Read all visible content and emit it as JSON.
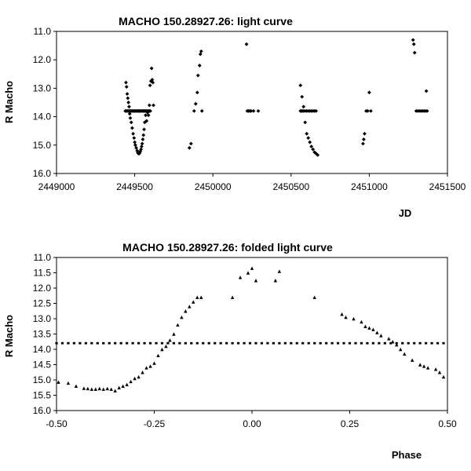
{
  "chart_data": [
    {
      "type": "scatter",
      "title": "MACHO 150.28927.26: light curve",
      "xlabel": "JD",
      "ylabel": "R Macho",
      "xlim": [
        2449000,
        2451500
      ],
      "ylim": [
        11.0,
        16.0
      ],
      "y_inverted": true,
      "x_ticks": [
        "2449000",
        "2449500",
        "2450000",
        "2450500",
        "2451000",
        "2451500"
      ],
      "y_ticks": [
        "11.0",
        "12.0",
        "13.0",
        "14.0",
        "15.0",
        "16.0"
      ],
      "marker": "diamond",
      "grid": false,
      "series": [
        {
          "x": [
            2449440,
            2449446,
            2449452,
            2449458,
            2449464,
            2449470,
            2449476,
            2449482,
            2449488,
            2449494,
            2449500,
            2449506,
            2449512,
            2449518,
            2449524,
            2449530,
            2449536,
            2449542,
            2449548,
            2449554,
            2449560,
            2449566,
            2449572,
            2449578,
            2449584,
            2449590,
            2449596,
            2449600,
            2449444,
            2449448,
            2449452,
            2449456,
            2449460,
            2449464,
            2449468,
            2449472,
            2449478,
            2449484,
            2449490,
            2449496,
            2449500,
            2449504,
            2449510,
            2449516,
            2449520,
            2449524,
            2449528,
            2449532,
            2449536,
            2449540,
            2449544,
            2449548,
            2449552,
            2449556,
            2449560,
            2449564,
            2449570,
            2449576,
            2449582,
            2449588,
            2449594,
            2449598,
            2449604,
            2449608,
            2449612,
            2449616,
            2449620,
            2449850,
            2449860,
            2449880,
            2449890,
            2449900,
            2449905,
            2449915,
            2449920,
            2449925,
            2449930,
            2450215,
            2450220,
            2450228,
            2450236,
            2450244,
            2450260,
            2450290,
            2450560,
            2450566,
            2450572,
            2450580,
            2450590,
            2450600,
            2450610,
            2450620,
            2450630,
            2450640,
            2450650,
            2450660,
            2450560,
            2450570,
            2450580,
            2450590,
            2450600,
            2450610,
            2450620,
            2450630,
            2450640,
            2450650,
            2450660,
            2450670,
            2450960,
            2450965,
            2450970,
            2450980,
            2450990,
            2451000,
            2451010,
            2451280,
            2451285,
            2451290,
            2451300,
            2451310,
            2451320,
            2451330,
            2451340,
            2451350,
            2451360,
            2451365,
            2451370
          ],
          "y": [
            13.8,
            13.8,
            13.8,
            13.8,
            13.8,
            13.8,
            13.8,
            13.8,
            13.8,
            13.8,
            13.8,
            13.8,
            13.8,
            13.8,
            13.8,
            13.8,
            13.8,
            13.8,
            13.8,
            13.8,
            13.8,
            13.8,
            13.8,
            13.8,
            13.8,
            13.8,
            13.8,
            13.8,
            12.8,
            12.95,
            13.2,
            13.35,
            13.5,
            13.65,
            13.9,
            14.05,
            14.2,
            14.4,
            14.6,
            14.75,
            14.9,
            15.0,
            15.1,
            15.2,
            15.27,
            15.3,
            15.3,
            15.28,
            15.22,
            15.15,
            15.05,
            14.95,
            14.8,
            14.65,
            14.45,
            14.2,
            13.95,
            14.15,
            13.85,
            13.95,
            13.6,
            12.9,
            12.75,
            12.3,
            12.7,
            12.8,
            13.6,
            15.1,
            14.95,
            13.8,
            13.55,
            13.15,
            12.55,
            12.2,
            11.8,
            11.7,
            13.8,
            11.45,
            13.8,
            13.8,
            13.8,
            13.8,
            13.8,
            13.8,
            13.8,
            13.8,
            13.8,
            13.8,
            13.8,
            13.8,
            13.8,
            13.8,
            13.8,
            13.8,
            13.8,
            13.8,
            12.9,
            13.3,
            13.65,
            14.2,
            14.6,
            14.75,
            14.9,
            15.05,
            15.15,
            15.25,
            15.3,
            15.35,
            14.95,
            14.8,
            14.6,
            13.8,
            13.8,
            13.15,
            13.8,
            11.3,
            11.45,
            11.75,
            13.8,
            13.8,
            13.8,
            13.8,
            13.8,
            13.8,
            13.8,
            13.1,
            13.8
          ]
        }
      ]
    },
    {
      "type": "scatter",
      "title": "MACHO 150.28927.26: folded light curve",
      "xlabel": "Phase",
      "ylabel": "R Macho",
      "xlim": [
        -0.5,
        0.5
      ],
      "ylim": [
        11.0,
        16.0
      ],
      "y_inverted": true,
      "x_ticks": [
        "-0.50",
        "-0.25",
        "0.00",
        "0.25",
        "0.50"
      ],
      "y_ticks": [
        "11.0",
        "11.5",
        "12.0",
        "12.5",
        "13.0",
        "13.5",
        "14.0",
        "14.5",
        "15.0",
        "15.5",
        "16.0"
      ],
      "marker": "square-triangle",
      "grid": false,
      "series": [
        {
          "x": [
            -0.5,
            -0.485,
            -0.47,
            -0.455,
            -0.44,
            -0.425,
            -0.41,
            -0.395,
            -0.38,
            -0.365,
            -0.35,
            -0.335,
            -0.32,
            -0.305,
            -0.29,
            -0.275,
            -0.26,
            -0.245,
            -0.23,
            -0.215,
            -0.2,
            -0.185,
            -0.17,
            -0.155,
            -0.14,
            -0.125,
            -0.11,
            -0.095,
            -0.08,
            -0.065,
            -0.05,
            -0.035,
            -0.02,
            -0.005,
            0.01,
            0.025,
            0.04,
            0.055,
            0.07,
            0.085,
            0.1,
            0.115,
            0.13,
            0.145,
            0.16,
            0.175,
            0.19,
            0.205,
            0.22,
            0.235,
            0.25,
            0.265,
            0.28,
            0.295,
            0.31,
            0.325,
            0.34,
            0.355,
            0.37,
            0.385,
            0.4,
            0.415,
            0.43,
            0.445,
            0.46,
            0.475,
            0.49,
            -0.495,
            -0.47,
            -0.45,
            -0.43,
            -0.42,
            -0.41,
            -0.4,
            -0.39,
            -0.38,
            -0.37,
            -0.36,
            -0.35,
            -0.34,
            -0.33,
            -0.32,
            -0.31,
            -0.3,
            -0.29,
            -0.28,
            -0.27,
            -0.26,
            -0.25,
            -0.24,
            -0.23,
            -0.22,
            -0.21,
            -0.2,
            -0.19,
            -0.18,
            -0.17,
            -0.16,
            -0.15,
            -0.14,
            -0.13,
            -0.05,
            -0.03,
            -0.01,
            0.0,
            0.01,
            0.06,
            0.07,
            0.16,
            0.23,
            0.24,
            0.26,
            0.28,
            0.29,
            0.3,
            0.31,
            0.32,
            0.33,
            0.35,
            0.36,
            0.37,
            0.38,
            0.39,
            0.41,
            0.43,
            0.44,
            0.45,
            0.47,
            0.48,
            0.49
          ],
          "y": [
            13.8,
            13.8,
            13.8,
            13.8,
            13.8,
            13.8,
            13.8,
            13.8,
            13.8,
            13.8,
            13.8,
            13.8,
            13.8,
            13.8,
            13.8,
            13.8,
            13.8,
            13.8,
            13.8,
            13.8,
            13.8,
            13.8,
            13.8,
            13.8,
            13.8,
            13.8,
            13.8,
            13.8,
            13.8,
            13.8,
            13.8,
            13.8,
            13.8,
            13.8,
            13.8,
            13.8,
            13.8,
            13.8,
            13.8,
            13.8,
            13.8,
            13.8,
            13.8,
            13.8,
            13.8,
            13.8,
            13.8,
            13.8,
            13.8,
            13.8,
            13.8,
            13.8,
            13.8,
            13.8,
            13.8,
            13.8,
            13.8,
            13.8,
            13.8,
            13.8,
            13.8,
            13.8,
            13.8,
            13.8,
            13.8,
            13.8,
            13.8,
            15.07,
            15.1,
            15.2,
            15.27,
            15.28,
            15.3,
            15.3,
            15.28,
            15.3,
            15.28,
            15.3,
            15.35,
            15.25,
            15.2,
            15.15,
            15.05,
            14.95,
            14.9,
            14.75,
            14.6,
            14.55,
            14.45,
            14.2,
            14.0,
            13.9,
            13.7,
            13.5,
            13.2,
            12.95,
            12.75,
            12.6,
            12.45,
            12.3,
            12.3,
            12.3,
            11.65,
            11.5,
            11.35,
            11.75,
            11.75,
            11.45,
            12.3,
            12.85,
            12.95,
            13.0,
            13.1,
            13.25,
            13.3,
            13.35,
            13.45,
            13.55,
            13.65,
            13.75,
            13.85,
            14.0,
            14.15,
            14.35,
            14.5,
            14.55,
            14.6,
            14.65,
            14.75,
            14.9
          ]
        }
      ]
    }
  ]
}
